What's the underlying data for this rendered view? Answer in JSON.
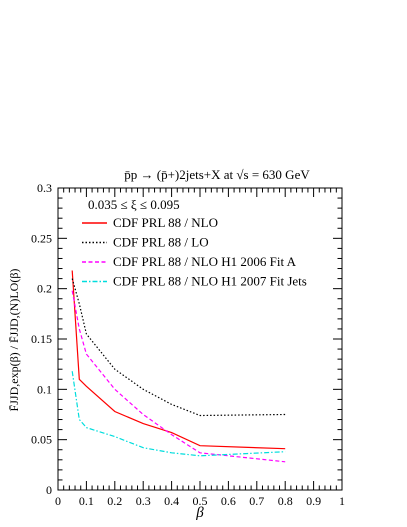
{
  "chart_data": {
    "type": "line",
    "title": "p̄p → (p̄+)2jets+X  at √s = 630 GeV",
    "xlabel": "β",
    "ylabel": "F̄JJD,exp(β) / F̄JJD,(N)LO(β)",
    "xlim": [
      0,
      1
    ],
    "ylim": [
      0,
      0.3
    ],
    "x_ticks": [
      0,
      0.1,
      0.2,
      0.3,
      0.4,
      0.5,
      0.6,
      0.7,
      0.8,
      0.9,
      1
    ],
    "x_tick_labels": [
      "0",
      "0.1",
      "0.2",
      "0.3",
      "0.4",
      "0.5",
      "0.6",
      "0.7",
      "0.8",
      "0.9",
      "1"
    ],
    "y_ticks": [
      0,
      0.05,
      0.1,
      0.15,
      0.2,
      0.25,
      0.3
    ],
    "y_tick_labels": [
      "0",
      "0.05",
      "0.1",
      "0.15",
      "0.2",
      "0.25",
      "0.3"
    ],
    "grid": false,
    "legend_position": "top-left",
    "legend_header": "0.035 ≤ ξ ≤ 0.095",
    "series": [
      {
        "name": "CDF PRL 88 / NLO",
        "color": "#ff0000",
        "dash": "solid",
        "x": [
          0.05,
          0.075,
          0.1,
          0.2,
          0.3,
          0.4,
          0.5,
          0.8
        ],
        "y": [
          0.218,
          0.11,
          0.103,
          0.078,
          0.066,
          0.057,
          0.044,
          0.041
        ]
      },
      {
        "name": "CDF PRL 88 / LO",
        "color": "#000000",
        "dash": "dotted",
        "x": [
          0.05,
          0.075,
          0.1,
          0.2,
          0.3,
          0.4,
          0.5,
          0.8
        ],
        "y": [
          0.21,
          0.185,
          0.155,
          0.12,
          0.1,
          0.085,
          0.074,
          0.075
        ]
      },
      {
        "name": "CDF PRL 88 / NLO H1 2006 Fit A",
        "color": "#ff00ff",
        "dash": "dashed",
        "x": [
          0.05,
          0.075,
          0.1,
          0.2,
          0.3,
          0.4,
          0.5,
          0.8
        ],
        "y": [
          0.198,
          0.16,
          0.135,
          0.1,
          0.075,
          0.055,
          0.037,
          0.028
        ]
      },
      {
        "name": "CDF PRL 88 / NLO H1 2007 Fit Jets",
        "color": "#00dddd",
        "dash": "dashdot",
        "x": [
          0.05,
          0.075,
          0.1,
          0.2,
          0.3,
          0.4,
          0.5,
          0.8
        ],
        "y": [
          0.118,
          0.07,
          0.062,
          0.053,
          0.042,
          0.037,
          0.034,
          0.038
        ]
      }
    ]
  }
}
